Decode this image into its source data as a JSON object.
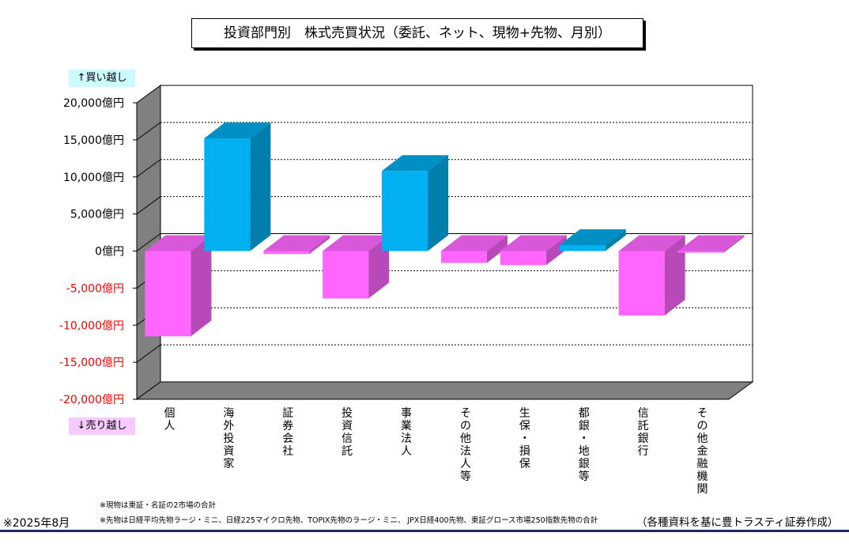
{
  "title": "投資部門別　株式売買状況（委託、ネット、現物+先物、月別）",
  "labels": {
    "buy": "↑買い越し",
    "sell": "↓売り越し"
  },
  "notes": [
    "※現物は東証・名証の2市場の合計",
    "※先物は日経平均先物ラージ・ミニ、日経225マイクロ先物、TOPIX先物のラージ・ミニ、 JPX日経400先物、東証グロース市場250指数先物の合計"
  ],
  "date": "※2025年8月",
  "source": "（各種資料を基に豊トラスティ証券作成）",
  "colors": {
    "positive": "#00b0f0",
    "negative": "#ff66ff",
    "negative_tick": "#ff0000",
    "wall": "#ffffff",
    "floor": "#808080"
  },
  "chart_data": {
    "type": "bar",
    "categories": [
      "個人",
      "海外投資家",
      "証券会社",
      "投資信託",
      "事業法人",
      "その他法人等",
      "生保・損保",
      "都銀・地銀等",
      "信託銀行",
      "その他金融機関"
    ],
    "values": [
      -11500,
      15200,
      -400,
      -6400,
      10800,
      -1600,
      -1900,
      800,
      -8700,
      -100
    ],
    "ylim": [
      -20000,
      20000
    ],
    "yticks": [
      "20,000億円",
      "15,000億円",
      "10,000億円",
      "5,000億円",
      "0億円",
      "-5,000億円",
      "-10,000億円",
      "-15,000億円",
      "-20,000億円"
    ],
    "grid": true,
    "unit": "億円"
  }
}
